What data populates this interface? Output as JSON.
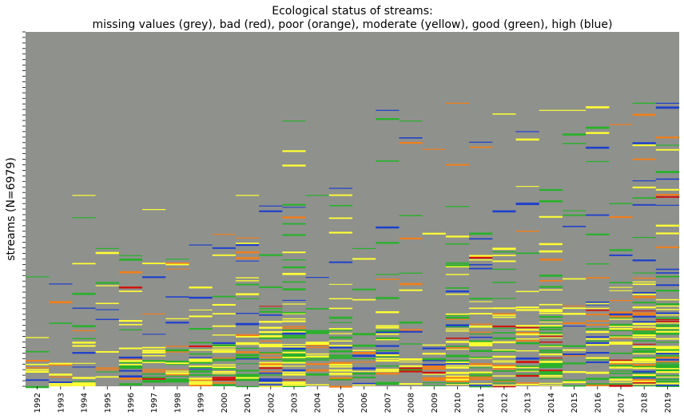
{
  "chart_data": {
    "type": "heatmap",
    "title_line1": "Ecological status of streams:",
    "title_line2": "missing values (grey), bad (red), poor (orange), moderate (yellow), good (green), high (blue)",
    "xlabel": "",
    "ylabel": "streams (N=6979)",
    "n_streams": 6979,
    "categories": [
      "1992",
      "1993",
      "1994",
      "1995",
      "1996",
      "1997",
      "1998",
      "1999",
      "2000",
      "2001",
      "2002",
      "2003",
      "2004",
      "2005",
      "2006",
      "2007",
      "2008",
      "2009",
      "2010",
      "2011",
      "2012",
      "2013",
      "2014",
      "2015",
      "2016",
      "2017",
      "2018",
      "2019"
    ],
    "status_classes": [
      {
        "name": "missing values",
        "color": "#8f918d"
      },
      {
        "name": "bad",
        "color": "#d1140f"
      },
      {
        "name": "poor",
        "color": "#f07f1b"
      },
      {
        "name": "moderate",
        "color": "#ffff33"
      },
      {
        "name": "good",
        "color": "#27b12a"
      },
      {
        "name": "high",
        "color": "#1e3fcc"
      }
    ],
    "first_observed_fraction": [
      0.31,
      0.29,
      0.54,
      0.39,
      0.37,
      0.5,
      0.36,
      0.4,
      0.43,
      0.54,
      0.51,
      0.75,
      0.54,
      0.56,
      0.39,
      0.78,
      0.75,
      0.67,
      0.8,
      0.69,
      0.77,
      0.72,
      0.78,
      0.78,
      0.79,
      0.74,
      0.8,
      0.8
    ],
    "observed_density": [
      0.15,
      0.18,
      0.17,
      0.17,
      0.2,
      0.18,
      0.26,
      0.26,
      0.3,
      0.26,
      0.32,
      0.26,
      0.22,
      0.24,
      0.18,
      0.22,
      0.14,
      0.14,
      0.27,
      0.28,
      0.2,
      0.2,
      0.24,
      0.16,
      0.2,
      0.24,
      0.32,
      0.34
    ]
  }
}
